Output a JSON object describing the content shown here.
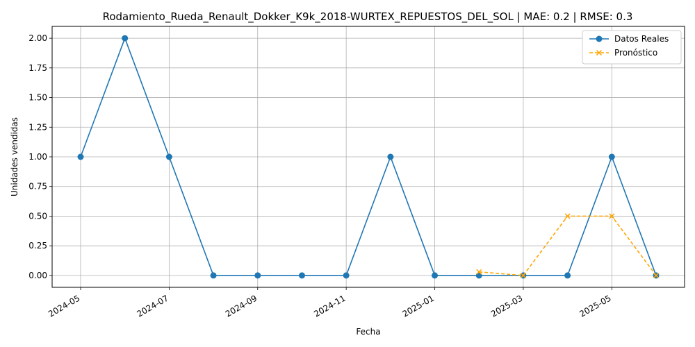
{
  "chart_data": {
    "type": "line",
    "title": "Rodamiento_Rueda_Renault_Dokker_K9k_2018-WURTEX_REPUESTOS_DEL_SOL | MAE: 0.2 | RMSE: 0.3",
    "xlabel": "Fecha",
    "ylabel": "Unidades vendidas",
    "ylim": [
      -0.1,
      2.1
    ],
    "yticks": [
      "0.00",
      "0.25",
      "0.50",
      "0.75",
      "1.00",
      "1.25",
      "1.50",
      "1.75",
      "2.00"
    ],
    "xticks": [
      "2024-05",
      "2024-07",
      "2024-09",
      "2024-11",
      "2025-01",
      "2025-03",
      "2025-05"
    ],
    "grid": true,
    "legend_position": "top-right",
    "series": [
      {
        "name": "Datos Reales",
        "color": "#1f77b4",
        "marker": "circle",
        "linestyle": "solid",
        "x": [
          "2024-05",
          "2024-06",
          "2024-07",
          "2024-08",
          "2024-09",
          "2024-10",
          "2024-11",
          "2024-12",
          "2025-01",
          "2025-02",
          "2025-03",
          "2025-04",
          "2025-05",
          "2025-06"
        ],
        "values": [
          1,
          2,
          1,
          0,
          0,
          0,
          0,
          1,
          0,
          0,
          0,
          0,
          1,
          0
        ]
      },
      {
        "name": "Pronóstico",
        "color": "#ffa500",
        "marker": "x",
        "linestyle": "dashed",
        "x": [
          "2025-02",
          "2025-03",
          "2025-04",
          "2025-05",
          "2025-06"
        ],
        "values": [
          0.03,
          0.0,
          0.5,
          0.5,
          0.0
        ]
      }
    ]
  }
}
